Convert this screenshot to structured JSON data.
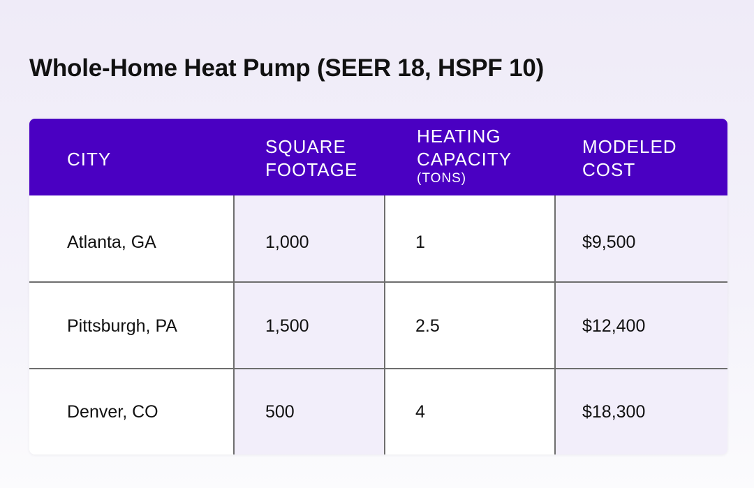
{
  "chart_data": {
    "type": "table",
    "title": "Whole-Home Heat Pump (SEER 18, HSPF 10)",
    "columns": [
      {
        "label": "CITY",
        "sub": ""
      },
      {
        "label": "SQUARE FOOTAGE",
        "sub": ""
      },
      {
        "label": "HEATING CAPACITY",
        "sub": "(TONS)"
      },
      {
        "label": "MODELED COST",
        "sub": ""
      }
    ],
    "rows": [
      [
        "Atlanta, GA",
        "1,000",
        "1",
        "$9,500"
      ],
      [
        "Pittsburgh, PA",
        "1,500",
        "2.5",
        "$12,400"
      ],
      [
        "Denver, CO",
        "500",
        "4",
        "$18,300"
      ]
    ]
  },
  "colors": {
    "header": "#4a00c2",
    "alt_column": "#f2eefa",
    "background": "#efebf8"
  }
}
